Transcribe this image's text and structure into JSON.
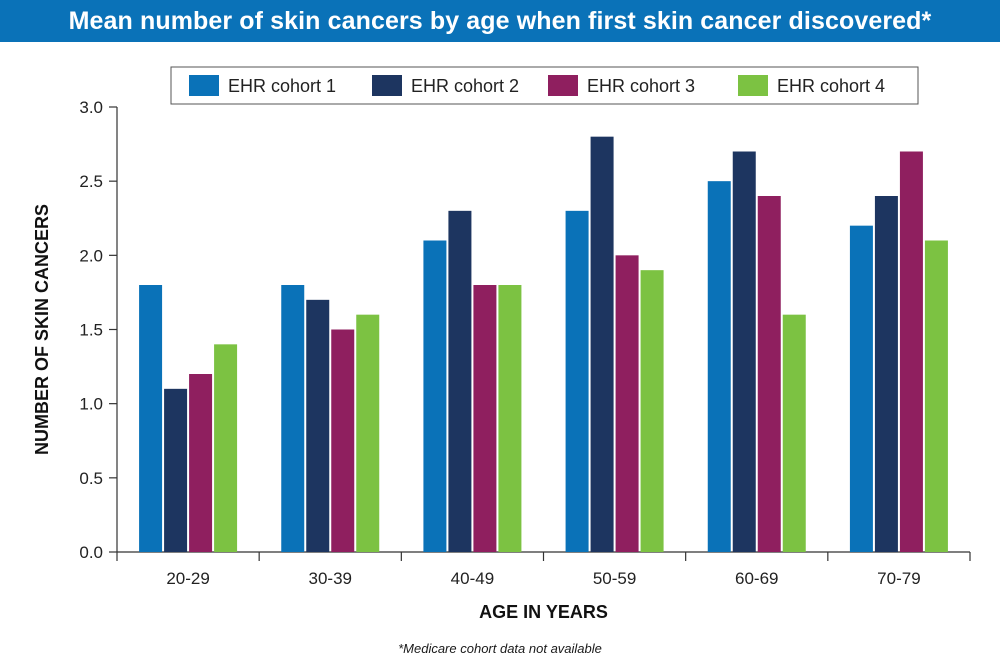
{
  "header": {
    "title": "Mean number of skin cancers by age when first skin cancer discovered*"
  },
  "footnote": "*Medicare cohort data not available",
  "chart_data": {
    "type": "bar",
    "title": "Mean number of skin cancers by age when first skin cancer discovered*",
    "xlabel": "AGE IN YEARS",
    "ylabel": "NUMBER OF SKIN CANCERS",
    "categories": [
      "20-29",
      "30-39",
      "40-49",
      "50-59",
      "60-69",
      "70-79"
    ],
    "ylim": [
      0,
      3.0
    ],
    "yticks": [
      "0.0",
      "0.5",
      "1.0",
      "1.5",
      "2.0",
      "2.5",
      "3.0"
    ],
    "grid": false,
    "legend_position": "top",
    "series": [
      {
        "name": "EHR cohort 1",
        "color": "#0a72b8",
        "values": [
          1.8,
          1.8,
          2.1,
          2.3,
          2.5,
          2.2
        ]
      },
      {
        "name": "EHR cohort 2",
        "color": "#1d3560",
        "values": [
          1.1,
          1.7,
          2.3,
          2.8,
          2.7,
          2.4
        ]
      },
      {
        "name": "EHR cohort 3",
        "color": "#8f1f5f",
        "values": [
          1.2,
          1.5,
          1.8,
          2.0,
          2.4,
          2.7
        ]
      },
      {
        "name": "EHR cohort 4",
        "color": "#7cc242",
        "values": [
          1.4,
          1.6,
          1.8,
          1.9,
          1.6,
          2.1
        ]
      }
    ]
  }
}
